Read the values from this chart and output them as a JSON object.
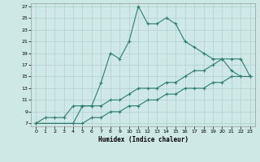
{
  "xlabel": "Humidex (Indice chaleur)",
  "bg_color": "#cde8e5",
  "grid_color": "#b0d0ce",
  "line_color": "#2e7d6e",
  "xlim": [
    -0.5,
    23.5
  ],
  "ylim": [
    6.5,
    27.5
  ],
  "xticks": [
    0,
    1,
    2,
    3,
    4,
    5,
    6,
    7,
    8,
    9,
    10,
    11,
    12,
    13,
    14,
    15,
    16,
    17,
    18,
    19,
    20,
    21,
    22,
    23
  ],
  "yticks": [
    7,
    9,
    11,
    13,
    15,
    17,
    19,
    21,
    23,
    25,
    27
  ],
  "line1_x": [
    0,
    1,
    2,
    3,
    4,
    5,
    6,
    7,
    8,
    9,
    10,
    11,
    12,
    13,
    14,
    15,
    16,
    17,
    18,
    19,
    20,
    21,
    22,
    23
  ],
  "line1_y": [
    7,
    8,
    8,
    8,
    10,
    10,
    10,
    14,
    19,
    18,
    21,
    27,
    24,
    24,
    25,
    24,
    21,
    20,
    19,
    18,
    18,
    16,
    15,
    15
  ],
  "line2_x": [
    0,
    4,
    5,
    6,
    7,
    8,
    9,
    10,
    11,
    12,
    13,
    14,
    15,
    16,
    17,
    18,
    19,
    20,
    21,
    22,
    23
  ],
  "line2_y": [
    7,
    7,
    10,
    10,
    10,
    11,
    11,
    12,
    13,
    13,
    13,
    14,
    14,
    15,
    16,
    16,
    17,
    18,
    18,
    18,
    15
  ],
  "line3_x": [
    0,
    4,
    5,
    6,
    7,
    8,
    9,
    10,
    11,
    12,
    13,
    14,
    15,
    16,
    17,
    18,
    19,
    20,
    21,
    22,
    23
  ],
  "line3_y": [
    7,
    7,
    7,
    8,
    8,
    9,
    9,
    10,
    10,
    11,
    11,
    12,
    12,
    13,
    13,
    13,
    14,
    14,
    15,
    15,
    15
  ]
}
